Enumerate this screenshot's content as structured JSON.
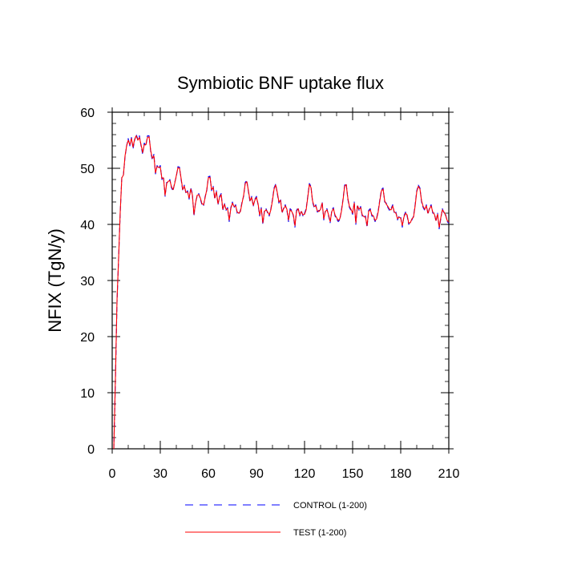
{
  "chart_data": {
    "type": "line",
    "title": "Symbiotic BNF uptake flux",
    "xlabel": "",
    "ylabel": "NFIX  (TgN/y)",
    "xlim": [
      0,
      210
    ],
    "ylim": [
      0,
      60
    ],
    "xticks": [
      "0",
      "30",
      "60",
      "90",
      "120",
      "150",
      "180",
      "210"
    ],
    "yticks": [
      "0",
      "10",
      "20",
      "30",
      "40",
      "50",
      "60"
    ],
    "x_start": 1,
    "series": [
      {
        "name": "CONTROL (1-200)",
        "color": "#0000ff",
        "dash": "dashed",
        "values": [
          0,
          12,
          26,
          34,
          42,
          48.5,
          48.8,
          52,
          54,
          55.3,
          54,
          55.5,
          53.5,
          55,
          56,
          55.2,
          55.8,
          54,
          52.5,
          54.5,
          54,
          55.8,
          55.8,
          53,
          51.5,
          52.5,
          49,
          50.5,
          50,
          50.5,
          48,
          48.5,
          45,
          47.5,
          47.5,
          48,
          46.5,
          46,
          47.5,
          48.5,
          50.3,
          50.2,
          48,
          46,
          47,
          45.5,
          46,
          44.5,
          46.5,
          45.5,
          41.5,
          44,
          45,
          45.5,
          44.5,
          43.5,
          43.3,
          45,
          46,
          48.5,
          48.6,
          46,
          46.8,
          44.5,
          46,
          43.5,
          45,
          45.5,
          42.5,
          43.8,
          42.5,
          43,
          40.5,
          43,
          44,
          43,
          43.5,
          42,
          41.8,
          42.5,
          44,
          45,
          47.5,
          47.8,
          45.8,
          44,
          45,
          43.2,
          44.5,
          45,
          43.5,
          41.5,
          43,
          40,
          42.5,
          42.8,
          42,
          41.5,
          42.8,
          44.5,
          46.5,
          47.2,
          45.5,
          43.8,
          44.5,
          42,
          43,
          43.5,
          42.5,
          40.5,
          42.8,
          42.5,
          41.5,
          39.5,
          42.5,
          43,
          41.5,
          42.5,
          41.5,
          42,
          42.8,
          45,
          47.3,
          46.8,
          44,
          43,
          43.5,
          42.2,
          42.5,
          42.5,
          44,
          40.8,
          42.5,
          42.8,
          41.5,
          40.3,
          42.5,
          43,
          41.5,
          41,
          40.5,
          40.8,
          42.5,
          44.5,
          47,
          47.3,
          44.5,
          43,
          42.5,
          41.8,
          44,
          40,
          43.5,
          42.5,
          43.2,
          41.5,
          41.2,
          41.5,
          39.5,
          42.5,
          42.8,
          41.5,
          41.3,
          40.5,
          41.2,
          42.5,
          44.5,
          46.2,
          46.5,
          44,
          43.8,
          43,
          42.5,
          42.8,
          43.5,
          42,
          42.2,
          40.8,
          41.5,
          41.3,
          39.5,
          41.5,
          42.2,
          41.5,
          40,
          40.5,
          40.8,
          41.5,
          43.5,
          46,
          47,
          46.5,
          44,
          43,
          42.5,
          43.5,
          41.8,
          43,
          43.5,
          42,
          42,
          40.5,
          42,
          39.2,
          41,
          42.8,
          42,
          41.8,
          40.5,
          40.2
        ]
      },
      {
        "name": "TEST (1-200)",
        "color": "#ff0000",
        "dash": "solid",
        "values": [
          0,
          12.5,
          26.5,
          34,
          42.2,
          48.3,
          48.8,
          52.2,
          54,
          55,
          54.2,
          55.3,
          53.8,
          55.2,
          55.8,
          55,
          55.5,
          54.2,
          52.8,
          54.2,
          54.2,
          55.5,
          55.6,
          53.2,
          51.8,
          52.2,
          49.2,
          50.3,
          50.2,
          50.2,
          48.2,
          48.3,
          45.2,
          47.3,
          47.7,
          47.8,
          46.7,
          46.2,
          47.3,
          48.7,
          50.1,
          50,
          48.2,
          46.2,
          46.8,
          45.7,
          45.8,
          44.7,
          46.3,
          45.3,
          41.8,
          43.8,
          45.2,
          45.3,
          44.7,
          43.7,
          43.5,
          44.8,
          46.2,
          48.3,
          48.4,
          46.2,
          46.6,
          44.7,
          45.8,
          43.7,
          44.8,
          45.3,
          42.7,
          43.6,
          42.7,
          42.8,
          40.8,
          42.8,
          43.8,
          43.2,
          43.3,
          42.2,
          42,
          42.3,
          43.8,
          45.2,
          47.3,
          47.6,
          46,
          44.2,
          44.8,
          43.4,
          44.3,
          44.8,
          43.7,
          41.7,
          42.8,
          40.3,
          42.3,
          42.6,
          42.2,
          41.7,
          42.6,
          44.3,
          46.3,
          47,
          45.7,
          44,
          44.3,
          42.2,
          42.8,
          43.3,
          42.7,
          40.8,
          42.6,
          42.3,
          41.7,
          39.8,
          42.3,
          42.8,
          41.7,
          42.3,
          41.7,
          41.8,
          42.6,
          44.8,
          47.1,
          46.6,
          44.2,
          43.2,
          43.3,
          42.4,
          42.3,
          42.7,
          43.8,
          41,
          42.3,
          42.6,
          41.7,
          40.5,
          42.3,
          42.8,
          41.7,
          41.2,
          40.7,
          41,
          42.3,
          44.3,
          46.8,
          47.1,
          44.7,
          43.2,
          42.7,
          42,
          43.8,
          40.3,
          43.3,
          42.7,
          43,
          41.7,
          41.4,
          41.3,
          39.8,
          42.3,
          42.6,
          41.7,
          41.5,
          40.7,
          41,
          42.3,
          44.3,
          46,
          46.3,
          44.2,
          43.6,
          43.2,
          42.7,
          42.6,
          43.3,
          42.2,
          42,
          41,
          41.3,
          41.1,
          39.8,
          41.3,
          42,
          41.7,
          40.2,
          40.3,
          41,
          41.3,
          43.3,
          45.8,
          46.8,
          46.3,
          44.2,
          43.2,
          42.7,
          43.3,
          42,
          42.8,
          43.3,
          42.2,
          41.8,
          40.7,
          41.8,
          39.5,
          41.2,
          42.6,
          42.2,
          41.6,
          40.7,
          40.4
        ]
      }
    ]
  }
}
